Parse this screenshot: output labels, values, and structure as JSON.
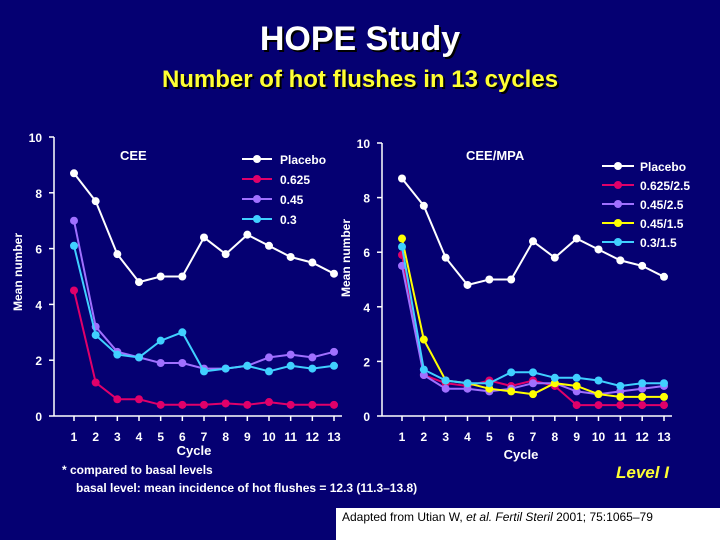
{
  "slide": {
    "title": "HOPE Study",
    "subtitle": "Number of hot flushes in 13 cycles",
    "footnote1": "* compared to basal levels",
    "footnote2": "basal level: mean incidence of hot flushes = 12.3 (11.3–13.8)",
    "level": "Level I",
    "citation": {
      "prefix": "Adapted from Utian W, ",
      "italic": "et al. Fertil Steril",
      "suffix": " 2001; 75:1065–79"
    }
  },
  "chart_data": [
    {
      "type": "line",
      "panel_label": "CEE",
      "xlabel": "Cycle",
      "ylabel": "Mean number",
      "x": [
        1,
        2,
        3,
        4,
        5,
        6,
        7,
        8,
        9,
        10,
        11,
        12,
        13
      ],
      "ylim": [
        0,
        10
      ],
      "yticks": [
        "0",
        "2",
        "4",
        "6",
        "8",
        "10"
      ],
      "xticks": [
        "1",
        "2",
        "3",
        "4",
        "5",
        "6",
        "7",
        "8",
        "9",
        "10",
        "11",
        "12",
        "13"
      ],
      "grid": false,
      "legend_position": "top-right",
      "series": [
        {
          "name": "Placebo",
          "color": "#ffffff",
          "values": [
            8.7,
            7.7,
            5.8,
            4.8,
            5.0,
            5.0,
            6.4,
            5.8,
            6.5,
            6.1,
            5.7,
            5.5,
            5.1
          ]
        },
        {
          "name": "0.625",
          "color": "#e0006a",
          "values": [
            4.5,
            1.2,
            0.6,
            0.6,
            0.4,
            0.4,
            0.4,
            0.45,
            0.4,
            0.5,
            0.4,
            0.4,
            0.4
          ]
        },
        {
          "name": "0.45",
          "color": "#a070ff",
          "values": [
            7.0,
            3.2,
            2.3,
            2.1,
            1.9,
            1.9,
            1.7,
            1.7,
            1.8,
            2.1,
            2.2,
            2.1,
            2.3
          ]
        },
        {
          "name": "0.3",
          "color": "#40d0ff",
          "values": [
            6.1,
            2.9,
            2.2,
            2.1,
            2.7,
            3.0,
            1.6,
            1.7,
            1.8,
            1.6,
            1.8,
            1.7,
            1.8
          ]
        }
      ]
    },
    {
      "type": "line",
      "panel_label": "CEE/MPA",
      "xlabel": "Cycle",
      "ylabel": "Mean number",
      "x": [
        1,
        2,
        3,
        4,
        5,
        6,
        7,
        8,
        9,
        10,
        11,
        12,
        13
      ],
      "ylim": [
        0,
        10
      ],
      "yticks": [
        "0",
        "2",
        "4",
        "6",
        "8",
        "10"
      ],
      "xticks": [
        "1",
        "2",
        "3",
        "4",
        "5",
        "6",
        "7",
        "8",
        "9",
        "10",
        "11",
        "12",
        "13"
      ],
      "grid": false,
      "legend_position": "top-right",
      "series": [
        {
          "name": "Placebo",
          "color": "#ffffff",
          "values": [
            8.7,
            7.7,
            5.8,
            4.8,
            5.0,
            5.0,
            6.4,
            5.8,
            6.5,
            6.1,
            5.7,
            5.5,
            5.1
          ]
        },
        {
          "name": "0.625/2.5",
          "color": "#e0006a",
          "values": [
            5.9,
            1.5,
            1.2,
            1.1,
            1.3,
            1.1,
            1.3,
            1.1,
            0.4,
            0.4,
            0.4,
            0.4,
            0.4
          ]
        },
        {
          "name": "0.45/2.5",
          "color": "#a070ff",
          "values": [
            5.5,
            1.5,
            1.0,
            1.0,
            0.9,
            1.0,
            1.2,
            1.2,
            0.9,
            0.8,
            0.9,
            1.0,
            1.1
          ]
        },
        {
          "name": "0.45/1.5",
          "color": "#ffff00",
          "values": [
            6.5,
            2.8,
            1.3,
            1.2,
            1.0,
            0.9,
            0.8,
            1.2,
            1.1,
            0.8,
            0.7,
            0.7,
            0.7
          ]
        },
        {
          "name": "0.3/1.5",
          "color": "#40d0ff",
          "values": [
            6.2,
            1.7,
            1.3,
            1.2,
            1.2,
            1.6,
            1.6,
            1.4,
            1.4,
            1.3,
            1.1,
            1.2,
            1.2
          ]
        }
      ]
    }
  ]
}
